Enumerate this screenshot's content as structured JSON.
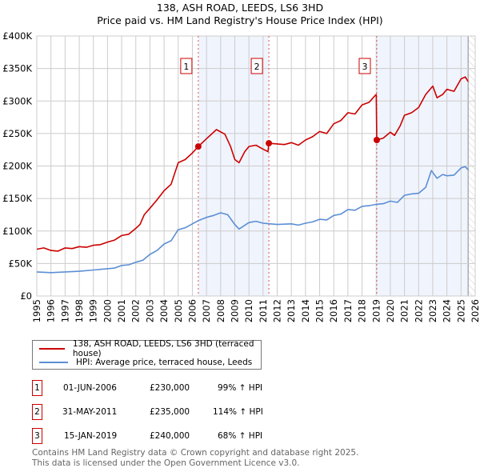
{
  "chart_data": {
    "type": "line",
    "title": "138, ASH ROAD, LEEDS, LS6 3HD",
    "subtitle": "Price paid vs. HM Land Registry's House Price Index (HPI)",
    "xlim": [
      1995,
      2026
    ],
    "ylim": [
      0,
      400000
    ],
    "x_ticks": [
      "1995",
      "1996",
      "1997",
      "1998",
      "1999",
      "2000",
      "2001",
      "2002",
      "2003",
      "2004",
      "2005",
      "2006",
      "2007",
      "2008",
      "2009",
      "2010",
      "2011",
      "2012",
      "2013",
      "2014",
      "2015",
      "2016",
      "2017",
      "2018",
      "2019",
      "2020",
      "2021",
      "2022",
      "2023",
      "2024",
      "2025",
      "2026"
    ],
    "y_ticks": [
      {
        "v": 0,
        "label": "£0"
      },
      {
        "v": 50000,
        "label": "£50K"
      },
      {
        "v": 100000,
        "label": "£100K"
      },
      {
        "v": 150000,
        "label": "£150K"
      },
      {
        "v": 200000,
        "label": "£200K"
      },
      {
        "v": 250000,
        "label": "£250K"
      },
      {
        "v": 300000,
        "label": "£300K"
      },
      {
        "v": 350000,
        "label": "£350K"
      },
      {
        "v": 400000,
        "label": "£400K"
      }
    ],
    "grid": true,
    "shaded_ranges": [
      [
        2006.42,
        2011.41
      ],
      [
        2019.04,
        2025.5
      ]
    ],
    "hatched_from": 2025.5,
    "series": [
      {
        "name": "138, ASH ROAD, LEEDS, LS6 3HD (terraced house)",
        "color": "#cc0000",
        "x": [
          1995,
          1995.5,
          1996,
          1996.5,
          1997,
          1997.5,
          1998,
          1998.5,
          1999,
          1999.5,
          2000,
          2000.5,
          2001,
          2001.5,
          2002,
          2002.3,
          2002.6,
          2003,
          2003.5,
          2004,
          2004.5,
          2005,
          2005.5,
          2006,
          2006.42,
          2007,
          2007.7,
          2008.3,
          2008.7,
          2009,
          2009.3,
          2009.7,
          2010,
          2010.5,
          2011,
          2011.35,
          2011.41,
          2012,
          2012.5,
          2013,
          2013.5,
          2014,
          2014.5,
          2015,
          2015.5,
          2016,
          2016.5,
          2017,
          2017.5,
          2018,
          2018.5,
          2018.9,
          2019.0,
          2019.04,
          2019.5,
          2020,
          2020.3,
          2020.7,
          2021,
          2021.5,
          2022,
          2022.5,
          2023,
          2023.3,
          2023.7,
          2024,
          2024.5,
          2025,
          2025.3,
          2025.5
        ],
        "y": [
          72000,
          74000,
          70000,
          69000,
          74000,
          73000,
          76000,
          75000,
          78000,
          79000,
          83000,
          86000,
          93000,
          95000,
          104000,
          110000,
          125000,
          135000,
          148000,
          162000,
          172000,
          205000,
          210000,
          220000,
          230000,
          242000,
          256000,
          249000,
          230000,
          210000,
          205000,
          222000,
          230000,
          232000,
          226000,
          222000,
          235000,
          234000,
          233000,
          236000,
          232000,
          240000,
          245000,
          253000,
          250000,
          265000,
          270000,
          282000,
          280000,
          294000,
          298000,
          308000,
          310000,
          240000,
          243000,
          252000,
          247000,
          262000,
          278000,
          282000,
          290000,
          310000,
          323000,
          305000,
          310000,
          318000,
          315000,
          334000,
          337000,
          330000
        ]
      },
      {
        "name": "HPI: Average price, terraced house, Leeds",
        "color": "#5b8fd4",
        "x": [
          1995,
          1996,
          1997,
          1998,
          1999,
          2000,
          2000.5,
          2001,
          2001.5,
          2002,
          2002.5,
          2003,
          2003.5,
          2004,
          2004.5,
          2005,
          2005.5,
          2006,
          2006.42,
          2007,
          2007.5,
          2008,
          2008.5,
          2009,
          2009.3,
          2010,
          2010.5,
          2011,
          2011.5,
          2012,
          2013,
          2013.5,
          2014,
          2014.5,
          2015,
          2015.5,
          2016,
          2016.5,
          2017,
          2017.5,
          2018,
          2018.5,
          2019,
          2019.5,
          2020,
          2020.5,
          2021,
          2021.5,
          2022,
          2022.5,
          2022.9,
          2023.3,
          2023.7,
          2024,
          2024.5,
          2025,
          2025.3,
          2025.5
        ],
        "y": [
          37000,
          36000,
          37000,
          38000,
          40000,
          42000,
          43000,
          47000,
          48000,
          52000,
          55000,
          64000,
          70000,
          80000,
          85000,
          102000,
          105000,
          111000,
          116000,
          121000,
          124000,
          128000,
          125000,
          110000,
          103000,
          113000,
          115000,
          112000,
          111000,
          110000,
          111000,
          109000,
          112000,
          114000,
          118000,
          117000,
          124000,
          126000,
          133000,
          132000,
          138000,
          139000,
          141000,
          142000,
          146000,
          144000,
          155000,
          157000,
          158000,
          167000,
          193000,
          181000,
          187000,
          185000,
          186000,
          197000,
          199000,
          194000
        ]
      }
    ],
    "sales": [
      {
        "id": "1",
        "x": 2006.42,
        "y": 230000,
        "date": "01-JUN-2006",
        "price": "£230,000",
        "hpi": "99% ↑ HPI"
      },
      {
        "id": "2",
        "x": 2011.41,
        "y": 235000,
        "date": "31-MAY-2011",
        "price": "£235,000",
        "hpi": "114% ↑ HPI"
      },
      {
        "id": "3",
        "x": 2019.04,
        "y": 240000,
        "date": "15-JAN-2019",
        "price": "£240,000",
        "hpi": "68% ↑ HPI"
      }
    ],
    "legend_position": "below"
  },
  "footer": {
    "line1": "Contains HM Land Registry data © Crown copyright and database right 2025.",
    "line2": "This data is licensed under the Open Government Licence v3.0."
  }
}
